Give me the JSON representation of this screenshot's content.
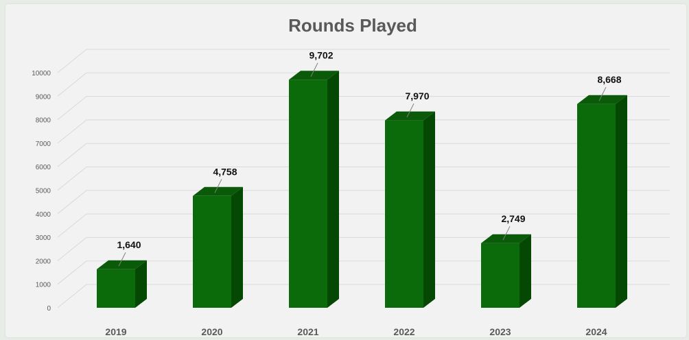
{
  "chart_data": {
    "type": "bar",
    "title": "Rounds Played",
    "categories": [
      "2019",
      "2020",
      "2021",
      "2022",
      "2023",
      "2024"
    ],
    "values": [
      1640,
      4758,
      9702,
      7970,
      2749,
      8668
    ],
    "data_labels": [
      "1,640",
      "4,758",
      "9,702",
      "7,970",
      "2,749",
      "8,668"
    ],
    "ylim": [
      0,
      11000
    ],
    "yticks": [
      "0",
      "1000",
      "2000",
      "3000",
      "4000",
      "5000",
      "6000",
      "7000",
      "8000",
      "9000",
      "10000"
    ],
    "grid": true,
    "legend": "none",
    "xlabel": "",
    "ylabel": "",
    "colors": {
      "bar_front": "#0b6b0b",
      "bar_side": "#044804",
      "bar_top": "#0a5a0a",
      "grid": "#d9d9d9",
      "background": "#f2f2f2"
    }
  }
}
